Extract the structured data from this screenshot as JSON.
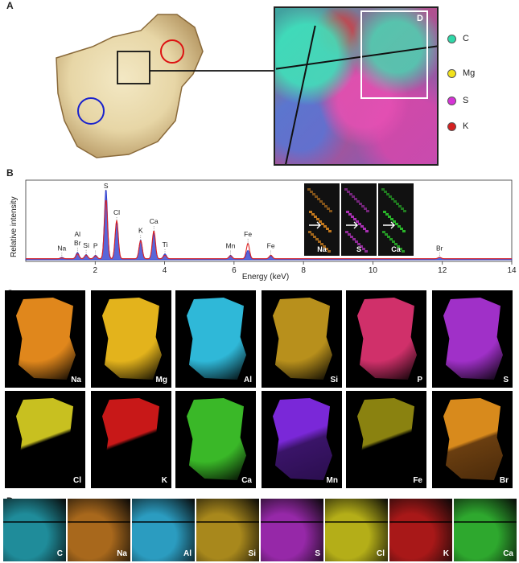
{
  "panels": {
    "a": "A",
    "b": "B",
    "c": "C",
    "d": "D"
  },
  "panel_a": {
    "zoom_box_label": "D",
    "legend": [
      {
        "label": "C",
        "color": "#2fd8a8"
      },
      {
        "label": "Mg",
        "color": "#f2e21c"
      },
      {
        "label": "S",
        "color": "#d633d6"
      },
      {
        "label": "K",
        "color": "#d42020"
      }
    ]
  },
  "chart_data": {
    "type": "line",
    "xlabel": "Energy (keV)",
    "ylabel": "Relative intensity",
    "xlim": [
      0,
      14
    ],
    "xticks": [
      2,
      4,
      6,
      8,
      10,
      12,
      14
    ],
    "series": [
      {
        "name": "",
        "color": "#2233cc"
      },
      {
        "name": "",
        "color": "#dd2222"
      }
    ],
    "peaks": [
      {
        "label": "Na",
        "x": 1.04,
        "blue": 0.02,
        "red": 0.01
      },
      {
        "label": "Al Br",
        "x": 1.49,
        "blue": 0.09,
        "red": 0.07
      },
      {
        "label": "Si",
        "x": 1.74,
        "blue": 0.06,
        "red": 0.05
      },
      {
        "label": "P",
        "x": 2.01,
        "blue": 0.05,
        "red": 0.04
      },
      {
        "label": "S",
        "x": 2.31,
        "blue": 1.0,
        "red": 0.85
      },
      {
        "label": "Cl",
        "x": 2.62,
        "blue": 0.52,
        "red": 0.55
      },
      {
        "label": "K",
        "x": 3.31,
        "blue": 0.27,
        "red": 0.26
      },
      {
        "label": "Ca",
        "x": 3.69,
        "blue": 0.37,
        "red": 0.4
      },
      {
        "label": "Ti",
        "x": 4.01,
        "blue": 0.07,
        "red": 0.05
      },
      {
        "label": "Mn",
        "x": 5.9,
        "blue": 0.05,
        "red": 0.04
      },
      {
        "label": "Fe",
        "x": 6.4,
        "blue": 0.12,
        "red": 0.22
      },
      {
        "label": "Fe",
        "x": 7.06,
        "blue": 0.04,
        "red": 0.05
      },
      {
        "label": "Br",
        "x": 11.92,
        "blue": 0.02,
        "red": 0.02
      }
    ],
    "insets": [
      {
        "label": "Na",
        "color": "#e08a20"
      },
      {
        "label": "S",
        "color": "#c436d0"
      },
      {
        "label": "Ca",
        "color": "#2ed12e"
      }
    ]
  },
  "panel_c": {
    "tiles": [
      {
        "label": "Na",
        "color": "#e0871c"
      },
      {
        "label": "Mg",
        "color": "#e3b31c"
      },
      {
        "label": "Al",
        "color": "#2fb8d8"
      },
      {
        "label": "Si",
        "color": "#b8901c"
      },
      {
        "label": "P",
        "color": "#d0306a"
      },
      {
        "label": "S",
        "color": "#a030c8"
      },
      {
        "label": "Cl",
        "color": "#c8c020"
      },
      {
        "label": "K",
        "color": "#c81818"
      },
      {
        "label": "Ca",
        "color": "#3ab828"
      },
      {
        "label": "Mn",
        "color": "#7a28d8"
      },
      {
        "label": "Fe",
        "color": "#8a8210"
      },
      {
        "label": "Br",
        "color": "#d88a1c"
      }
    ]
  },
  "panel_d": {
    "strips": [
      {
        "label": "C",
        "color": "#1f8c9a"
      },
      {
        "label": "Na",
        "color": "#a8681c"
      },
      {
        "label": "Al",
        "color": "#2b9cc0"
      },
      {
        "label": "Si",
        "color": "#a8881c"
      },
      {
        "label": "S",
        "color": "#9628a8"
      },
      {
        "label": "Cl",
        "color": "#b4ae18"
      },
      {
        "label": "K",
        "color": "#a81818"
      },
      {
        "label": "Ca",
        "color": "#2ea82e"
      }
    ]
  }
}
